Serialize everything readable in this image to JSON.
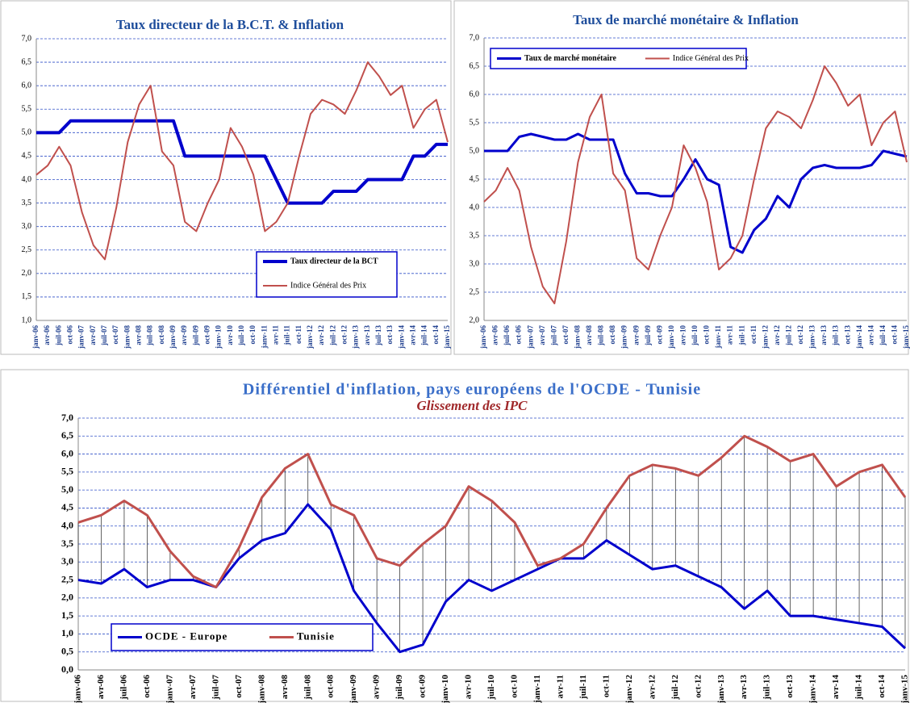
{
  "chart_data": [
    {
      "type": "line",
      "title": "Taux directeur de la B.C.T. & Inflation",
      "categories": [
        "janv-06",
        "avr-06",
        "juil-06",
        "oct-06",
        "janv-07",
        "avr-07",
        "juil-07",
        "oct-07",
        "janv-08",
        "avr-08",
        "juil-08",
        "oct-08",
        "janv-09",
        "avr-09",
        "juil-09",
        "oct-09",
        "janv-10",
        "avr-10",
        "juil-10",
        "oct-10",
        "janv-11",
        "avr-11",
        "juil-11",
        "oct-11",
        "janv-12",
        "avr-12",
        "juil-12",
        "oct-12",
        "janv-13",
        "avr-13",
        "juil-13",
        "oct-13",
        "janv-14",
        "avr-14",
        "juil-14",
        "oct-14",
        "janv-15"
      ],
      "series": [
        {
          "name": "Taux directeur de la BCT",
          "color": "#0000cc",
          "width": 4,
          "values": [
            5,
            5,
            5,
            5.25,
            5.25,
            5.25,
            5.25,
            5.25,
            5.25,
            5.25,
            5.25,
            5.25,
            5.25,
            4.5,
            4.5,
            4.5,
            4.5,
            4.5,
            4.5,
            4.5,
            4.5,
            4.0,
            3.5,
            3.5,
            3.5,
            3.5,
            3.75,
            3.75,
            3.75,
            4.0,
            4.0,
            4.0,
            4.0,
            4.5,
            4.5,
            4.75,
            4.75
          ]
        },
        {
          "name": "Indice Général des Prix",
          "color": "#c0504d",
          "width": 2,
          "values": [
            4.1,
            4.3,
            4.7,
            4.3,
            3.3,
            2.6,
            2.3,
            3.4,
            4.8,
            5.6,
            6.0,
            4.6,
            4.3,
            3.1,
            2.9,
            3.5,
            4.0,
            5.1,
            4.7,
            4.1,
            2.9,
            3.1,
            3.5,
            4.5,
            5.4,
            5.7,
            5.6,
            5.4,
            5.9,
            6.5,
            6.2,
            5.8,
            6.0,
            5.1,
            5.5,
            5.7,
            4.8
          ]
        }
      ],
      "ylim": [
        1,
        7
      ],
      "yticks": [
        {
          "value": 1,
          "label": "1,0"
        },
        {
          "value": 1.5,
          "label": "1,5"
        },
        {
          "value": 2,
          "label": "2,0"
        },
        {
          "value": 2.5,
          "label": "2,5"
        },
        {
          "value": 3,
          "label": "3,0"
        },
        {
          "value": 3.5,
          "label": "3,5"
        },
        {
          "value": 4,
          "label": "4,0"
        },
        {
          "value": 4.5,
          "label": "4,5"
        },
        {
          "value": 5,
          "label": "5,0"
        },
        {
          "value": 5.5,
          "label": "5,5"
        },
        {
          "value": 6,
          "label": "6,0"
        },
        {
          "value": 6.5,
          "label": "6,5"
        },
        {
          "value": 7,
          "label": "7,0"
        }
      ],
      "grid": true,
      "legend": "lower right"
    },
    {
      "type": "line",
      "title": "Taux de marché monétaire & Inflation",
      "categories": [
        "janv-06",
        "avr-06",
        "juil-06",
        "oct-06",
        "janv-07",
        "avr-07",
        "juil-07",
        "oct-07",
        "janv-08",
        "avr-08",
        "juil-08",
        "oct-08",
        "janv-09",
        "avr-09",
        "juil-09",
        "oct-09",
        "janv-10",
        "avr-10",
        "juil-10",
        "oct-10",
        "janv-11",
        "avr-11",
        "juil-11",
        "oct-11",
        "janv-12",
        "avr-12",
        "juil-12",
        "oct-12",
        "janv-13",
        "avr-13",
        "juil-13",
        "oct-13",
        "janv-14",
        "avr-14",
        "juil-14",
        "oct-14",
        "janv-15"
      ],
      "series": [
        {
          "name": "Taux de marché monétaire",
          "color": "#0000cc",
          "width": 3,
          "values": [
            5.0,
            5.0,
            5.0,
            5.25,
            5.3,
            5.25,
            5.2,
            5.2,
            5.3,
            5.2,
            5.2,
            5.2,
            4.6,
            4.25,
            4.25,
            4.2,
            4.2,
            4.5,
            4.85,
            4.5,
            4.4,
            3.3,
            3.2,
            3.6,
            3.8,
            4.2,
            4.0,
            4.5,
            4.7,
            4.75,
            4.7,
            4.7,
            4.7,
            4.75,
            5.0,
            4.95,
            4.9
          ]
        },
        {
          "name": "Indice Général des Prix",
          "color": "#c0504d",
          "width": 2,
          "values": [
            4.1,
            4.3,
            4.7,
            4.3,
            3.3,
            2.6,
            2.3,
            3.4,
            4.8,
            5.6,
            6.0,
            4.6,
            4.3,
            3.1,
            2.9,
            3.5,
            4.0,
            5.1,
            4.7,
            4.1,
            2.9,
            3.1,
            3.5,
            4.5,
            5.4,
            5.7,
            5.6,
            5.4,
            5.9,
            6.5,
            6.2,
            5.8,
            6.0,
            5.1,
            5.5,
            5.7,
            4.8
          ]
        }
      ],
      "ylim": [
        2,
        7
      ],
      "yticks": [
        {
          "value": 2,
          "label": "2,0"
        },
        {
          "value": 2.5,
          "label": "2,5"
        },
        {
          "value": 3,
          "label": "3,0"
        },
        {
          "value": 3.5,
          "label": "3,5"
        },
        {
          "value": 4,
          "label": "4,0"
        },
        {
          "value": 4.5,
          "label": "4,5"
        },
        {
          "value": 5,
          "label": "5,0"
        },
        {
          "value": 5.5,
          "label": "5,5"
        },
        {
          "value": 6,
          "label": "6,0"
        },
        {
          "value": 6.5,
          "label": "6,5"
        },
        {
          "value": 7,
          "label": "7,0"
        }
      ],
      "grid": true,
      "legend": "upper left"
    },
    {
      "type": "line",
      "title": "Différentiel d'inflation, pays européens de l'OCDE - Tunisie",
      "subtitle": "Glissement des IPC",
      "categories": [
        "janv-06",
        "avr-06",
        "juil-06",
        "oct-06",
        "janv-07",
        "avr-07",
        "juil-07",
        "oct-07",
        "janv-08",
        "avr-08",
        "juil-08",
        "oct-08",
        "janv-09",
        "avr-09",
        "juil-09",
        "oct-09",
        "janv-10",
        "avr-10",
        "juil-10",
        "oct-10",
        "janv-11",
        "avr-11",
        "juil-11",
        "oct-11",
        "janv-12",
        "avr-12",
        "juil-12",
        "oct-12",
        "janv-13",
        "avr-13",
        "juil-13",
        "oct-13",
        "janv-14",
        "avr-14",
        "juil-14",
        "oct-14",
        "janv-15"
      ],
      "series": [
        {
          "name": "OCDE - Europe",
          "color": "#0000cc",
          "width": 3,
          "values": [
            2.5,
            2.4,
            2.8,
            2.3,
            2.5,
            2.5,
            2.3,
            3.1,
            3.6,
            3.8,
            4.6,
            3.9,
            2.2,
            1.3,
            0.5,
            0.7,
            1.9,
            2.5,
            2.2,
            2.5,
            2.8,
            3.1,
            3.1,
            3.6,
            3.2,
            2.8,
            2.9,
            2.6,
            2.3,
            1.7,
            2.2,
            1.5,
            1.5,
            1.4,
            1.3,
            1.2,
            0.6
          ]
        },
        {
          "name": "Tunisie",
          "color": "#c0504d",
          "width": 3,
          "values": [
            4.1,
            4.3,
            4.7,
            4.3,
            3.3,
            2.6,
            2.3,
            3.4,
            4.8,
            5.6,
            6.0,
            4.6,
            4.3,
            3.1,
            2.9,
            3.5,
            4.0,
            5.1,
            4.7,
            4.1,
            2.9,
            3.1,
            3.5,
            4.5,
            5.4,
            5.7,
            5.6,
            5.4,
            5.9,
            6.5,
            6.2,
            5.8,
            6.0,
            5.1,
            5.5,
            5.7,
            4.8
          ]
        }
      ],
      "ylim": [
        0,
        7
      ],
      "yticks": [
        {
          "value": 0,
          "label": "0,0"
        },
        {
          "value": 0.5,
          "label": "0,5"
        },
        {
          "value": 1,
          "label": "1,0"
        },
        {
          "value": 1.5,
          "label": "1,5"
        },
        {
          "value": 2,
          "label": "2,0"
        },
        {
          "value": 2.5,
          "label": "2,5"
        },
        {
          "value": 3,
          "label": "3,0"
        },
        {
          "value": 3.5,
          "label": "3,5"
        },
        {
          "value": 4,
          "label": "4,0"
        },
        {
          "value": 4.5,
          "label": "4,5"
        },
        {
          "value": 5,
          "label": "5,0"
        },
        {
          "value": 5.5,
          "label": "5,5"
        },
        {
          "value": 6,
          "label": "6,0"
        },
        {
          "value": 6.5,
          "label": "6,5"
        },
        {
          "value": 7,
          "label": "7,0"
        }
      ],
      "grid": true,
      "legend": "lower left"
    }
  ]
}
